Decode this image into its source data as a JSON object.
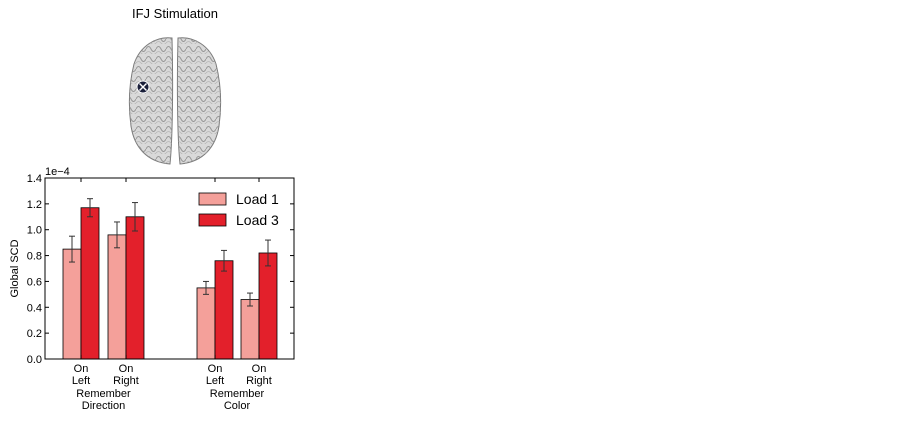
{
  "figure": {
    "title": "IFJ Stimulation"
  },
  "colors": {
    "load1": "#f4a09a",
    "load3": "#e3202b",
    "brain": "#d9d9d9",
    "marker": "#1a1f3a"
  },
  "chart_data": {
    "type": "bar",
    "title": "",
    "xlabel": "",
    "ylabel": "Global SCD",
    "scale_label": "1e−4",
    "ylim": [
      0,
      1.4
    ],
    "yticks": [
      "0.0",
      "0.2",
      "0.4",
      "0.6",
      "0.8",
      "1.0",
      "1.2",
      "1.4"
    ],
    "categories": [
      [
        "On",
        "Left"
      ],
      [
        "On",
        "Right"
      ],
      [
        "On",
        "Left"
      ],
      [
        "On",
        "Right"
      ]
    ],
    "groups": [
      [
        "Remember",
        "Direction"
      ],
      [
        "Remember",
        "Color"
      ]
    ],
    "legend_position": "top-right",
    "grid": false,
    "series": [
      {
        "name": "Load 1",
        "values": [
          0.85,
          0.96,
          0.55,
          0.46
        ],
        "errors": [
          0.1,
          0.1,
          0.05,
          0.05
        ]
      },
      {
        "name": "Load 3",
        "values": [
          1.17,
          1.1,
          0.76,
          0.82
        ],
        "errors": [
          0.07,
          0.11,
          0.08,
          0.1
        ]
      }
    ]
  }
}
